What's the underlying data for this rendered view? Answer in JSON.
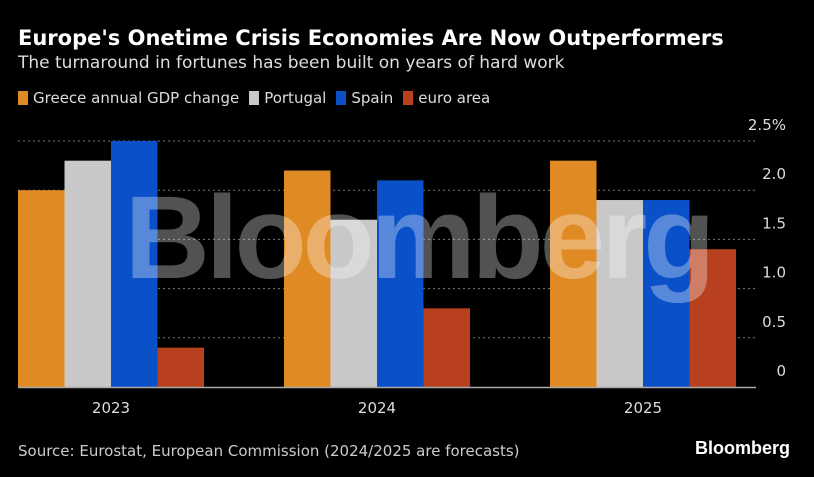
{
  "title": "Europe's Onetime Crisis Economies Are Now Outperformers",
  "subtitle": "The turnaround in fortunes has been built on years of hard work",
  "source": "Source: Eurostat, European Commission (2024/2025 are forecasts)",
  "brand": "Bloomberg",
  "watermark": "Bloomberg",
  "chart_data": {
    "type": "bar",
    "categories": [
      "2023",
      "2024",
      "2025"
    ],
    "series": [
      {
        "name": "Greece annual GDP change",
        "color": "#e08a24",
        "values": [
          2.0,
          2.2,
          2.3
        ]
      },
      {
        "name": "Portugal",
        "color": "#c8c8c8",
        "values": [
          2.3,
          1.7,
          1.9
        ]
      },
      {
        "name": "Spain",
        "color": "#0a50c8",
        "values": [
          2.5,
          2.1,
          1.9
        ]
      },
      {
        "name": "euro area",
        "color": "#b8401e",
        "values": [
          0.4,
          0.8,
          1.4
        ]
      }
    ],
    "ylim": [
      0,
      2.5
    ],
    "yticks": [
      "0",
      "0.5",
      "1.0",
      "1.5",
      "2.0",
      "2.5%"
    ],
    "ytick_values": [
      0,
      0.5,
      1.0,
      1.5,
      2.0,
      2.5
    ],
    "grid": true,
    "legend_position": "top-left",
    "y_axis_side": "right"
  }
}
